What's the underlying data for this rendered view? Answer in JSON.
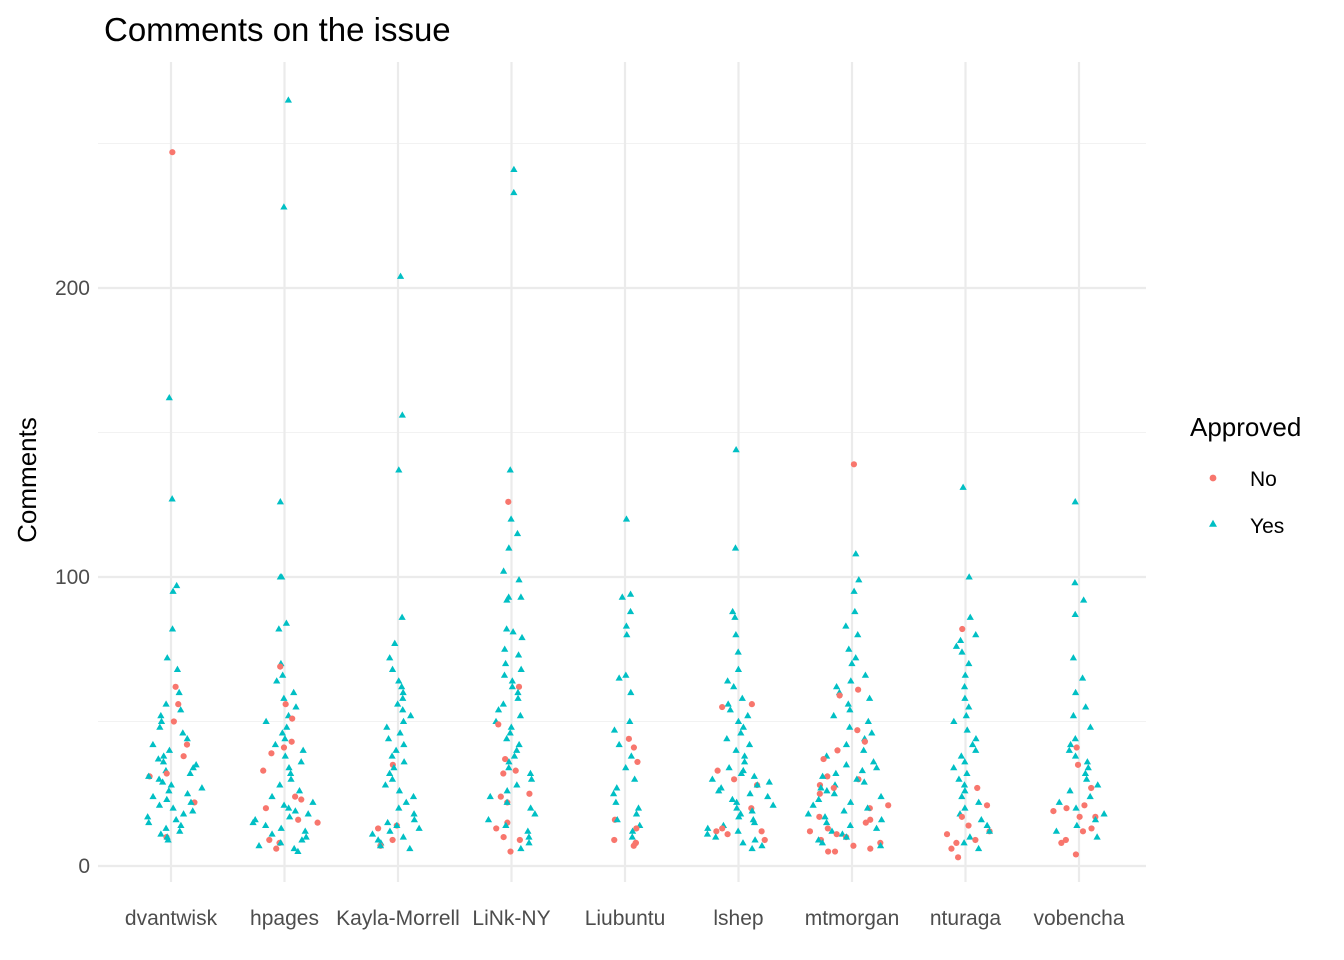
{
  "chart_data": {
    "type": "scatter",
    "subtype": "beeswarm",
    "title": "Comments on the issue",
    "xlabel": "",
    "ylabel": "Comments",
    "categories": [
      "dvantwisk",
      "hpages",
      "Kayla-Morrell",
      "LiNk-NY",
      "Liubuntu",
      "lshep",
      "mtmorgan",
      "nturaga",
      "vobencha"
    ],
    "ylim": [
      0,
      265
    ],
    "yticks": [
      0,
      100,
      200
    ],
    "grid": true,
    "legend": {
      "title": "Approved",
      "position": "right",
      "entries": [
        {
          "name": "No",
          "shape": "circle",
          "color": "#F8766D"
        },
        {
          "name": "Yes",
          "shape": "triangle",
          "color": "#00BFC4"
        }
      ]
    },
    "series": [
      {
        "name": "No",
        "values": [
          [
            247,
            62,
            56,
            50,
            42,
            38,
            32,
            31,
            22,
            10
          ],
          [
            69,
            56,
            51,
            43,
            41,
            39,
            33,
            24,
            23,
            20,
            16,
            15,
            9,
            8,
            6
          ],
          [
            35,
            14,
            13,
            9,
            7
          ],
          [
            126,
            62,
            49,
            37,
            33,
            32,
            25,
            24,
            22,
            15,
            13,
            10,
            9,
            5
          ],
          [
            44,
            41,
            36,
            16,
            13,
            9,
            8,
            8,
            7
          ],
          [
            56,
            55,
            33,
            30,
            28,
            20,
            13,
            12,
            12,
            11,
            9
          ],
          [
            139,
            61,
            59,
            47,
            43,
            40,
            37,
            31,
            30,
            28,
            27,
            25,
            21,
            20,
            17,
            16,
            15,
            13,
            12,
            11,
            10,
            9,
            8,
            7,
            6,
            5,
            5
          ],
          [
            82,
            27,
            21,
            17,
            14,
            12,
            11,
            9,
            8,
            6,
            3
          ],
          [
            41,
            35,
            27,
            21,
            20,
            19,
            17,
            17,
            13,
            12,
            9,
            8,
            4
          ]
        ]
      },
      {
        "name": "Yes",
        "values": [
          [
            162,
            127,
            97,
            95,
            82,
            72,
            68,
            60,
            56,
            54,
            52,
            50,
            48,
            46,
            44,
            42,
            40,
            38,
            37,
            36,
            35,
            34,
            33,
            32,
            31,
            30,
            29,
            28,
            27,
            26,
            25,
            24,
            23,
            22,
            21,
            20,
            19,
            18,
            17,
            16,
            15,
            14,
            13,
            12,
            11,
            10,
            9
          ],
          [
            265,
            228,
            126,
            100,
            100,
            84,
            82,
            70,
            66,
            64,
            60,
            58,
            55,
            52,
            50,
            48,
            46,
            44,
            42,
            40,
            38,
            36,
            34,
            32,
            30,
            28,
            26,
            24,
            22,
            21,
            20,
            19,
            18,
            17,
            16,
            15,
            14,
            13,
            12,
            11,
            10,
            9,
            8,
            7,
            6,
            5
          ],
          [
            204,
            156,
            137,
            86,
            77,
            72,
            68,
            64,
            62,
            60,
            58,
            56,
            54,
            52,
            50,
            48,
            46,
            44,
            42,
            40,
            38,
            36,
            34,
            32,
            30,
            28,
            26,
            24,
            22,
            20,
            18,
            16,
            15,
            14,
            13,
            12,
            11,
            10,
            9,
            8,
            7,
            6
          ],
          [
            241,
            233,
            137,
            120,
            115,
            110,
            102,
            99,
            93,
            93,
            92,
            82,
            81,
            79,
            75,
            73,
            70,
            68,
            66,
            64,
            62,
            60,
            58,
            56,
            54,
            52,
            50,
            48,
            46,
            44,
            42,
            40,
            38,
            36,
            34,
            32,
            30,
            28,
            26,
            24,
            22,
            20,
            18,
            16,
            14,
            12,
            10,
            8,
            6
          ],
          [
            120,
            94,
            93,
            88,
            83,
            80,
            66,
            65,
            60,
            50,
            47,
            42,
            38,
            34,
            30,
            27,
            25,
            22,
            20,
            18,
            16,
            14,
            12,
            10
          ],
          [
            144,
            110,
            88,
            86,
            80,
            74,
            68,
            64,
            62,
            58,
            56,
            54,
            52,
            50,
            48,
            46,
            44,
            42,
            40,
            38,
            36,
            34,
            33,
            32,
            31,
            30,
            29,
            28,
            27,
            26,
            25,
            24,
            23,
            22,
            21,
            20,
            19,
            18,
            17,
            16,
            15,
            14,
            13,
            12,
            11,
            10,
            9,
            8,
            7,
            6
          ],
          [
            108,
            99,
            95,
            88,
            83,
            80,
            75,
            72,
            70,
            66,
            64,
            62,
            60,
            58,
            56,
            54,
            52,
            50,
            48,
            46,
            44,
            42,
            40,
            38,
            36,
            35,
            34,
            33,
            32,
            31,
            30,
            29,
            28,
            27,
            26,
            25,
            24,
            23,
            22,
            21,
            20,
            19,
            18,
            17,
            16,
            15,
            14,
            13,
            12,
            11,
            10,
            9,
            8,
            7
          ],
          [
            131,
            100,
            86,
            80,
            78,
            76,
            74,
            70,
            66,
            62,
            58,
            55,
            52,
            50,
            47,
            44,
            42,
            40,
            38,
            36,
            34,
            32,
            30,
            28,
            26,
            24,
            22,
            20,
            18,
            16,
            14,
            12,
            10,
            8,
            6
          ],
          [
            126,
            98,
            92,
            87,
            72,
            65,
            60,
            55,
            52,
            48,
            44,
            42,
            40,
            38,
            36,
            34,
            32,
            30,
            28,
            26,
            24,
            22,
            20,
            18,
            16,
            14,
            12,
            10
          ]
        ]
      }
    ]
  }
}
